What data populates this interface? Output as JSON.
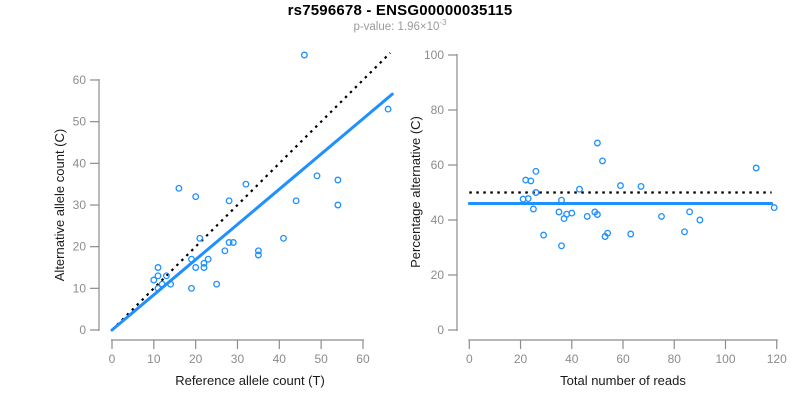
{
  "header": {
    "title": "rs7596678 - ENSG00000035115",
    "subtitle_base": "p-value: 1.96×10",
    "subtitle_exponent": "-3"
  },
  "colors": {
    "accent": "#1E90FF",
    "dotted_line": "#000000",
    "axis": "#8c8c8c",
    "tick_text": "#8c8c8c",
    "axis_title_text": "#1a1a1a",
    "subtitle_text": "#9b9b9b"
  },
  "chart_data": [
    {
      "type": "scatter",
      "name": "allele-counts-scatter",
      "xlabel": "Reference allele count (T)",
      "ylabel": "Alternative allele count (C)",
      "xticks": [
        0,
        10,
        20,
        30,
        40,
        50,
        60
      ],
      "yticks": [
        0,
        10,
        20,
        30,
        40,
        50,
        60
      ],
      "xlim": [
        0,
        67
      ],
      "ylim": [
        0,
        67
      ],
      "grid": false,
      "legend": "none",
      "marker": "open-circle",
      "points": [
        [
          46,
          66
        ],
        [
          66,
          53
        ],
        [
          16,
          34
        ],
        [
          20,
          32
        ],
        [
          32,
          35
        ],
        [
          28,
          31
        ],
        [
          49,
          37
        ],
        [
          54,
          36
        ],
        [
          44,
          31
        ],
        [
          54,
          30
        ],
        [
          41,
          22
        ],
        [
          21,
          22
        ],
        [
          35,
          19
        ],
        [
          35,
          18
        ],
        [
          28,
          21
        ],
        [
          29,
          21
        ],
        [
          27,
          19
        ],
        [
          23,
          17
        ],
        [
          19,
          17
        ],
        [
          22,
          16
        ],
        [
          20,
          15
        ],
        [
          22,
          15
        ],
        [
          25,
          11
        ],
        [
          19,
          10
        ],
        [
          14,
          11
        ],
        [
          13,
          13
        ],
        [
          11,
          15
        ],
        [
          10,
          12
        ],
        [
          11,
          13
        ],
        [
          11,
          10
        ],
        [
          12,
          11
        ]
      ],
      "lines": [
        {
          "name": "identity-line",
          "style": "dotted",
          "color": "#000000",
          "from": [
            0,
            0
          ],
          "to": [
            66.5,
            66.5
          ]
        },
        {
          "name": "fitted-line",
          "style": "solid",
          "color": "#1E90FF",
          "from": [
            0,
            0
          ],
          "to": [
            67,
            56.6
          ]
        }
      ]
    },
    {
      "type": "scatter",
      "name": "percentage-vs-reads-scatter",
      "xlabel": "Total number of reads",
      "ylabel": "Percentage alternative (C)",
      "xticks": [
        0,
        20,
        40,
        60,
        80,
        100,
        120
      ],
      "yticks": [
        0,
        20,
        40,
        60,
        80,
        100
      ],
      "xlim": [
        0,
        125
      ],
      "ylim": [
        0,
        100
      ],
      "grid": false,
      "legend": "none",
      "marker": "open-circle",
      "points": [
        [
          112,
          58.9
        ],
        [
          119,
          44.5
        ],
        [
          50,
          68
        ],
        [
          52,
          61.5
        ],
        [
          67,
          52.2
        ],
        [
          59,
          52.5
        ],
        [
          86,
          43
        ],
        [
          90,
          40
        ],
        [
          75,
          41.3
        ],
        [
          84,
          35.7
        ],
        [
          63,
          34.9
        ],
        [
          43,
          51.2
        ],
        [
          54,
          35.2
        ],
        [
          53,
          34
        ],
        [
          49,
          42.9
        ],
        [
          50,
          42
        ],
        [
          46,
          41.3
        ],
        [
          40,
          42.5
        ],
        [
          36,
          47.2
        ],
        [
          38,
          42.1
        ],
        [
          35,
          42.9
        ],
        [
          37,
          40.5
        ],
        [
          36,
          30.6
        ],
        [
          29,
          34.5
        ],
        [
          25,
          44
        ],
        [
          26,
          50
        ],
        [
          26,
          57.7
        ],
        [
          22,
          54.5
        ],
        [
          24,
          54.2
        ],
        [
          21,
          47.6
        ],
        [
          23,
          47.8
        ]
      ],
      "lines": [
        {
          "name": "expected-50pct-line",
          "style": "dotted",
          "color": "#000000",
          "from": [
            0,
            50
          ],
          "to": [
            118,
            50
          ]
        },
        {
          "name": "fitted-line",
          "style": "solid",
          "color": "#1E90FF",
          "from": [
            0,
            46
          ],
          "to": [
            118,
            46
          ]
        }
      ]
    }
  ]
}
